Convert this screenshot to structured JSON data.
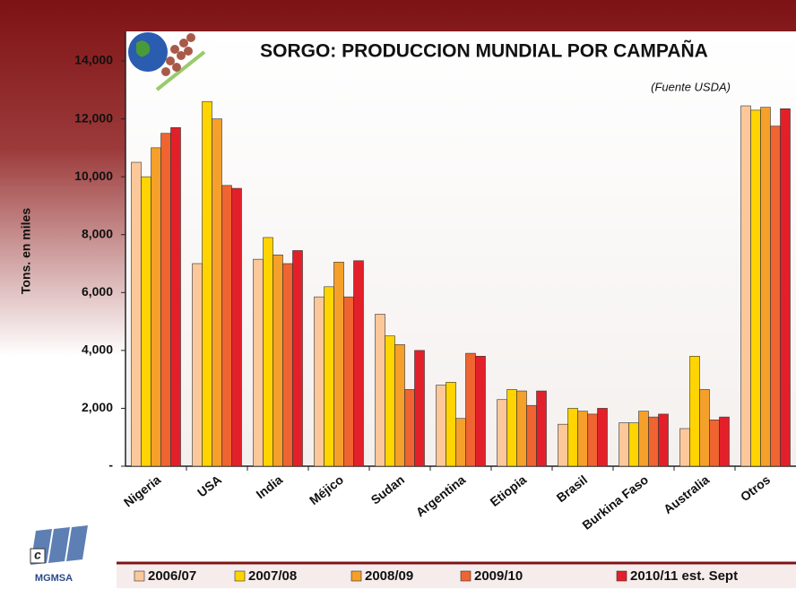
{
  "chart_data": {
    "type": "bar",
    "title": "SORGO: PRODUCCION MUNDIAL POR CAMPAÑA",
    "subtitle": "(Fuente USDA)",
    "y_label": "Tons. en miles",
    "logo_text": "MGMSA",
    "categories": [
      "Nigeria",
      "USA",
      "India",
      "Méjico",
      "Sudan",
      "Argentina",
      "Etiopia",
      "Brasil",
      "Burkina Faso",
      "Australia",
      "Otros"
    ],
    "series": [
      {
        "name": "2006/07",
        "color": "#fcc89a",
        "values": [
          10500,
          7000,
          7150,
          5850,
          5250,
          2800,
          2300,
          1450,
          1500,
          1300,
          12450
        ]
      },
      {
        "name": "2007/08",
        "color": "#ffd400",
        "values": [
          10000,
          12600,
          7900,
          6200,
          4500,
          2900,
          2650,
          2000,
          1500,
          3800,
          12300
        ]
      },
      {
        "name": "2008/09",
        "color": "#f5a02a",
        "values": [
          11000,
          12000,
          7300,
          7050,
          4200,
          1650,
          2600,
          1900,
          1900,
          2650,
          12400
        ]
      },
      {
        "name": "2009/10",
        "color": "#ef6430",
        "values": [
          11500,
          9700,
          7000,
          5850,
          2650,
          3900,
          2100,
          1800,
          1700,
          1600,
          11750
        ]
      },
      {
        "name": "2010/11 est. Sept",
        "color": "#e3202a",
        "values": [
          11700,
          9600,
          7450,
          7100,
          4000,
          3800,
          2600,
          2000,
          1800,
          1700,
          12350
        ]
      }
    ],
    "ylim": [
      0,
      14000
    ],
    "yticks": [
      {
        "value": 0,
        "label": "-"
      },
      {
        "value": 2000,
        "label": "2,000"
      },
      {
        "value": 4000,
        "label": "4,000"
      },
      {
        "value": 6000,
        "label": "6,000"
      },
      {
        "value": 8000,
        "label": "8,000"
      },
      {
        "value": 10000,
        "label": "10,000"
      },
      {
        "value": 12000,
        "label": "12,000"
      },
      {
        "value": 14000,
        "label": "14,000"
      }
    ],
    "grid": false,
    "legend": "bottom"
  }
}
